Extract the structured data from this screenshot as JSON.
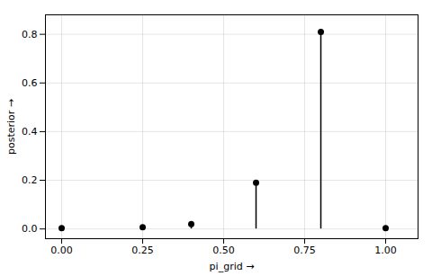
{
  "chart_data": {
    "type": "lollipop",
    "x": [
      0.0,
      0.25,
      0.4,
      0.6,
      0.8,
      1.0
    ],
    "values": [
      0.003,
      0.007,
      0.02,
      0.19,
      0.81,
      0.003
    ],
    "color": "#000000",
    "xlabel": "pi_grid",
    "ylabel": "posterior",
    "xlim": [
      -0.05,
      1.1
    ],
    "ylim": [
      -0.04,
      0.88
    ],
    "xticks": [
      {
        "value": 0.0,
        "label": "0.00"
      },
      0.25,
      {
        "value": 0.5,
        "label": "0.50"
      },
      0.75,
      {
        "value": 1.0,
        "label": "1.00"
      }
    ],
    "yticks": [
      {
        "value": 0.0,
        "label": "0.0"
      },
      0.2,
      0.4,
      0.6,
      0.8
    ],
    "grid": true
  }
}
